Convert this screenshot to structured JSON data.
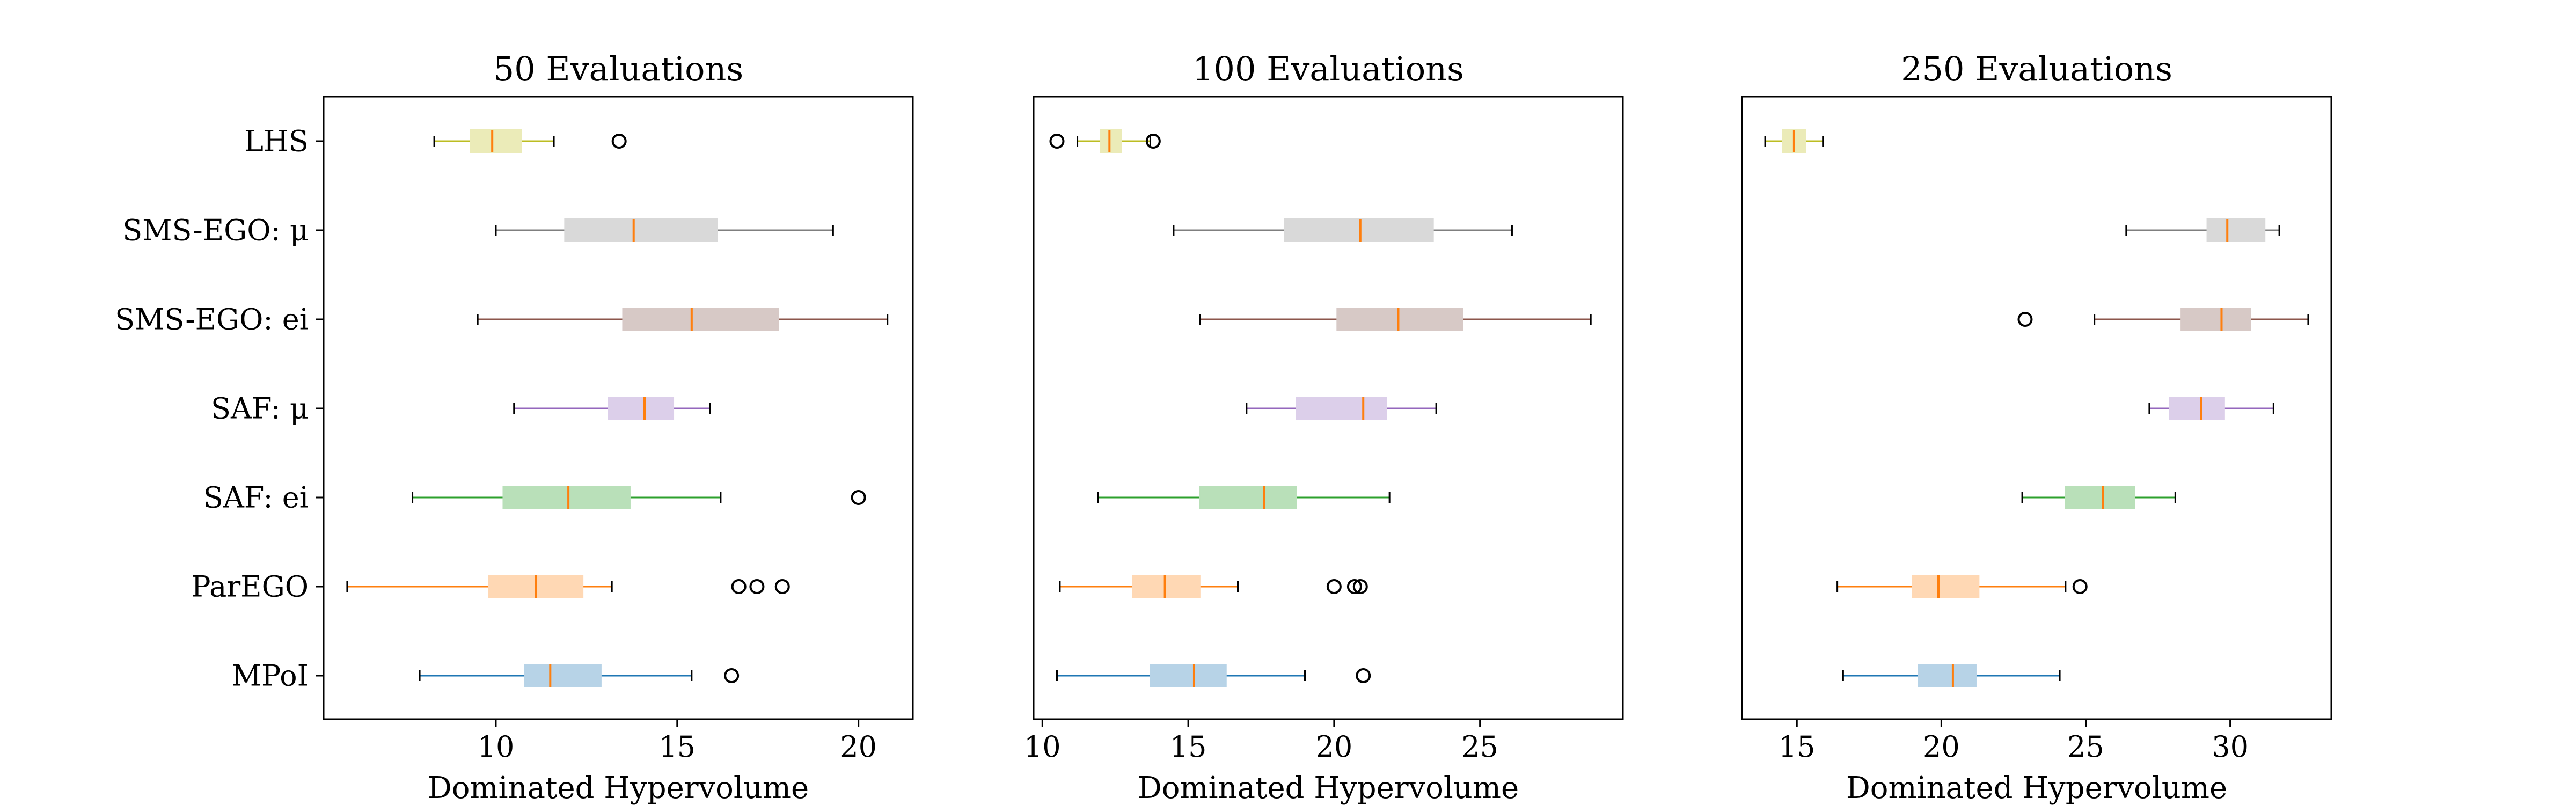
{
  "chart_data": [
    {
      "type": "boxplot",
      "orientation": "horizontal",
      "title": "50 Evaluations",
      "xlabel": "Dominated Hypervolume",
      "xlim": [
        5.25,
        21.5
      ],
      "xticks": [
        10,
        15,
        20
      ],
      "categories": [
        "MPoI",
        "ParEGO",
        "SAF: ei",
        "SAF: μ",
        "SMS-EGO: ei",
        "SMS-EGO: μ",
        "LHS"
      ],
      "boxes": [
        {
          "min": 7.9,
          "q1": 10.8,
          "median": 11.5,
          "q3": 12.9,
          "max": 15.4,
          "outliers": [
            16.5
          ]
        },
        {
          "min": 5.9,
          "q1": 9.8,
          "median": 11.1,
          "q3": 12.4,
          "max": 13.2,
          "outliers": [
            16.7,
            17.2,
            17.9
          ]
        },
        {
          "min": 7.7,
          "q1": 10.2,
          "median": 12.0,
          "q3": 13.7,
          "max": 16.2,
          "outliers": [
            20.0
          ]
        },
        {
          "min": 10.5,
          "q1": 13.1,
          "median": 14.1,
          "q3": 14.9,
          "max": 15.9,
          "outliers": []
        },
        {
          "min": 9.5,
          "q1": 13.5,
          "median": 15.4,
          "q3": 17.8,
          "max": 20.8,
          "outliers": []
        },
        {
          "min": 10.0,
          "q1": 11.9,
          "median": 13.8,
          "q3": 16.1,
          "max": 19.3,
          "outliers": []
        },
        {
          "min": 8.3,
          "q1": 9.3,
          "median": 9.9,
          "q3": 10.7,
          "max": 11.6,
          "outliers": [
            13.4
          ]
        }
      ]
    },
    {
      "type": "boxplot",
      "orientation": "horizontal",
      "title": "100 Evaluations",
      "xlabel": "Dominated Hypervolume",
      "xlim": [
        9.7,
        29.9
      ],
      "xticks": [
        10,
        15,
        20,
        25
      ],
      "categories": [
        "MPoI",
        "ParEGO",
        "SAF: ei",
        "SAF: μ",
        "SMS-EGO: ei",
        "SMS-EGO: μ",
        "LHS"
      ],
      "boxes": [
        {
          "min": 10.5,
          "q1": 13.7,
          "median": 15.2,
          "q3": 16.3,
          "max": 19.0,
          "outliers": [
            21.0
          ]
        },
        {
          "min": 10.6,
          "q1": 13.1,
          "median": 14.2,
          "q3": 15.4,
          "max": 16.7,
          "outliers": [
            20.0,
            20.7,
            20.9
          ]
        },
        {
          "min": 11.9,
          "q1": 15.4,
          "median": 17.6,
          "q3": 18.7,
          "max": 21.9,
          "outliers": []
        },
        {
          "min": 17.0,
          "q1": 18.7,
          "median": 21.0,
          "q3": 21.8,
          "max": 23.5,
          "outliers": []
        },
        {
          "min": 15.4,
          "q1": 20.1,
          "median": 22.2,
          "q3": 24.4,
          "max": 28.8,
          "outliers": []
        },
        {
          "min": 14.5,
          "q1": 18.3,
          "median": 20.9,
          "q3": 23.4,
          "max": 26.1,
          "outliers": []
        },
        {
          "min": 11.2,
          "q1": 12.0,
          "median": 12.3,
          "q3": 12.7,
          "max": 13.7,
          "outliers": [
            10.5,
            13.8
          ]
        }
      ]
    },
    {
      "type": "boxplot",
      "orientation": "horizontal",
      "title": "250 Evaluations",
      "xlabel": "Dominated Hypervolume",
      "xlim": [
        13.1,
        33.5
      ],
      "xticks": [
        15,
        20,
        25,
        30
      ],
      "categories": [
        "MPoI",
        "ParEGO",
        "SAF: ei",
        "SAF: μ",
        "SMS-EGO: ei",
        "SMS-EGO: μ",
        "LHS"
      ],
      "boxes": [
        {
          "min": 16.6,
          "q1": 19.2,
          "median": 20.4,
          "q3": 21.2,
          "max": 24.1,
          "outliers": []
        },
        {
          "min": 16.4,
          "q1": 19.0,
          "median": 19.9,
          "q3": 21.3,
          "max": 24.3,
          "outliers": [
            24.8
          ]
        },
        {
          "min": 22.8,
          "q1": 24.3,
          "median": 25.6,
          "q3": 26.7,
          "max": 28.1,
          "outliers": []
        },
        {
          "min": 27.2,
          "q1": 27.9,
          "median": 29.0,
          "q3": 29.8,
          "max": 31.5,
          "outliers": []
        },
        {
          "min": 25.3,
          "q1": 28.3,
          "median": 29.7,
          "q3": 30.7,
          "max": 32.7,
          "outliers": [
            22.9
          ]
        },
        {
          "min": 26.4,
          "q1": 29.2,
          "median": 29.9,
          "q3": 31.2,
          "max": 31.7,
          "outliers": []
        },
        {
          "min": 13.9,
          "q1": 14.5,
          "median": 14.9,
          "q3": 15.3,
          "max": 15.9,
          "outliers": []
        }
      ]
    }
  ],
  "colors": {
    "box_lines": [
      "#1f77b4",
      "#ff7f0e",
      "#2ca02c",
      "#9467bd",
      "#8c564b",
      "#7f7f7f",
      "#bcbd22"
    ],
    "box_fills": [
      "#b7d3e7",
      "#ffd8b4",
      "#b9e0b9",
      "#dccfea",
      "#d7c9c6",
      "#d9d9d9",
      "#ebebb8"
    ],
    "median": "#ff7f0e",
    "whisker": "#000000",
    "axes": "#000000"
  }
}
